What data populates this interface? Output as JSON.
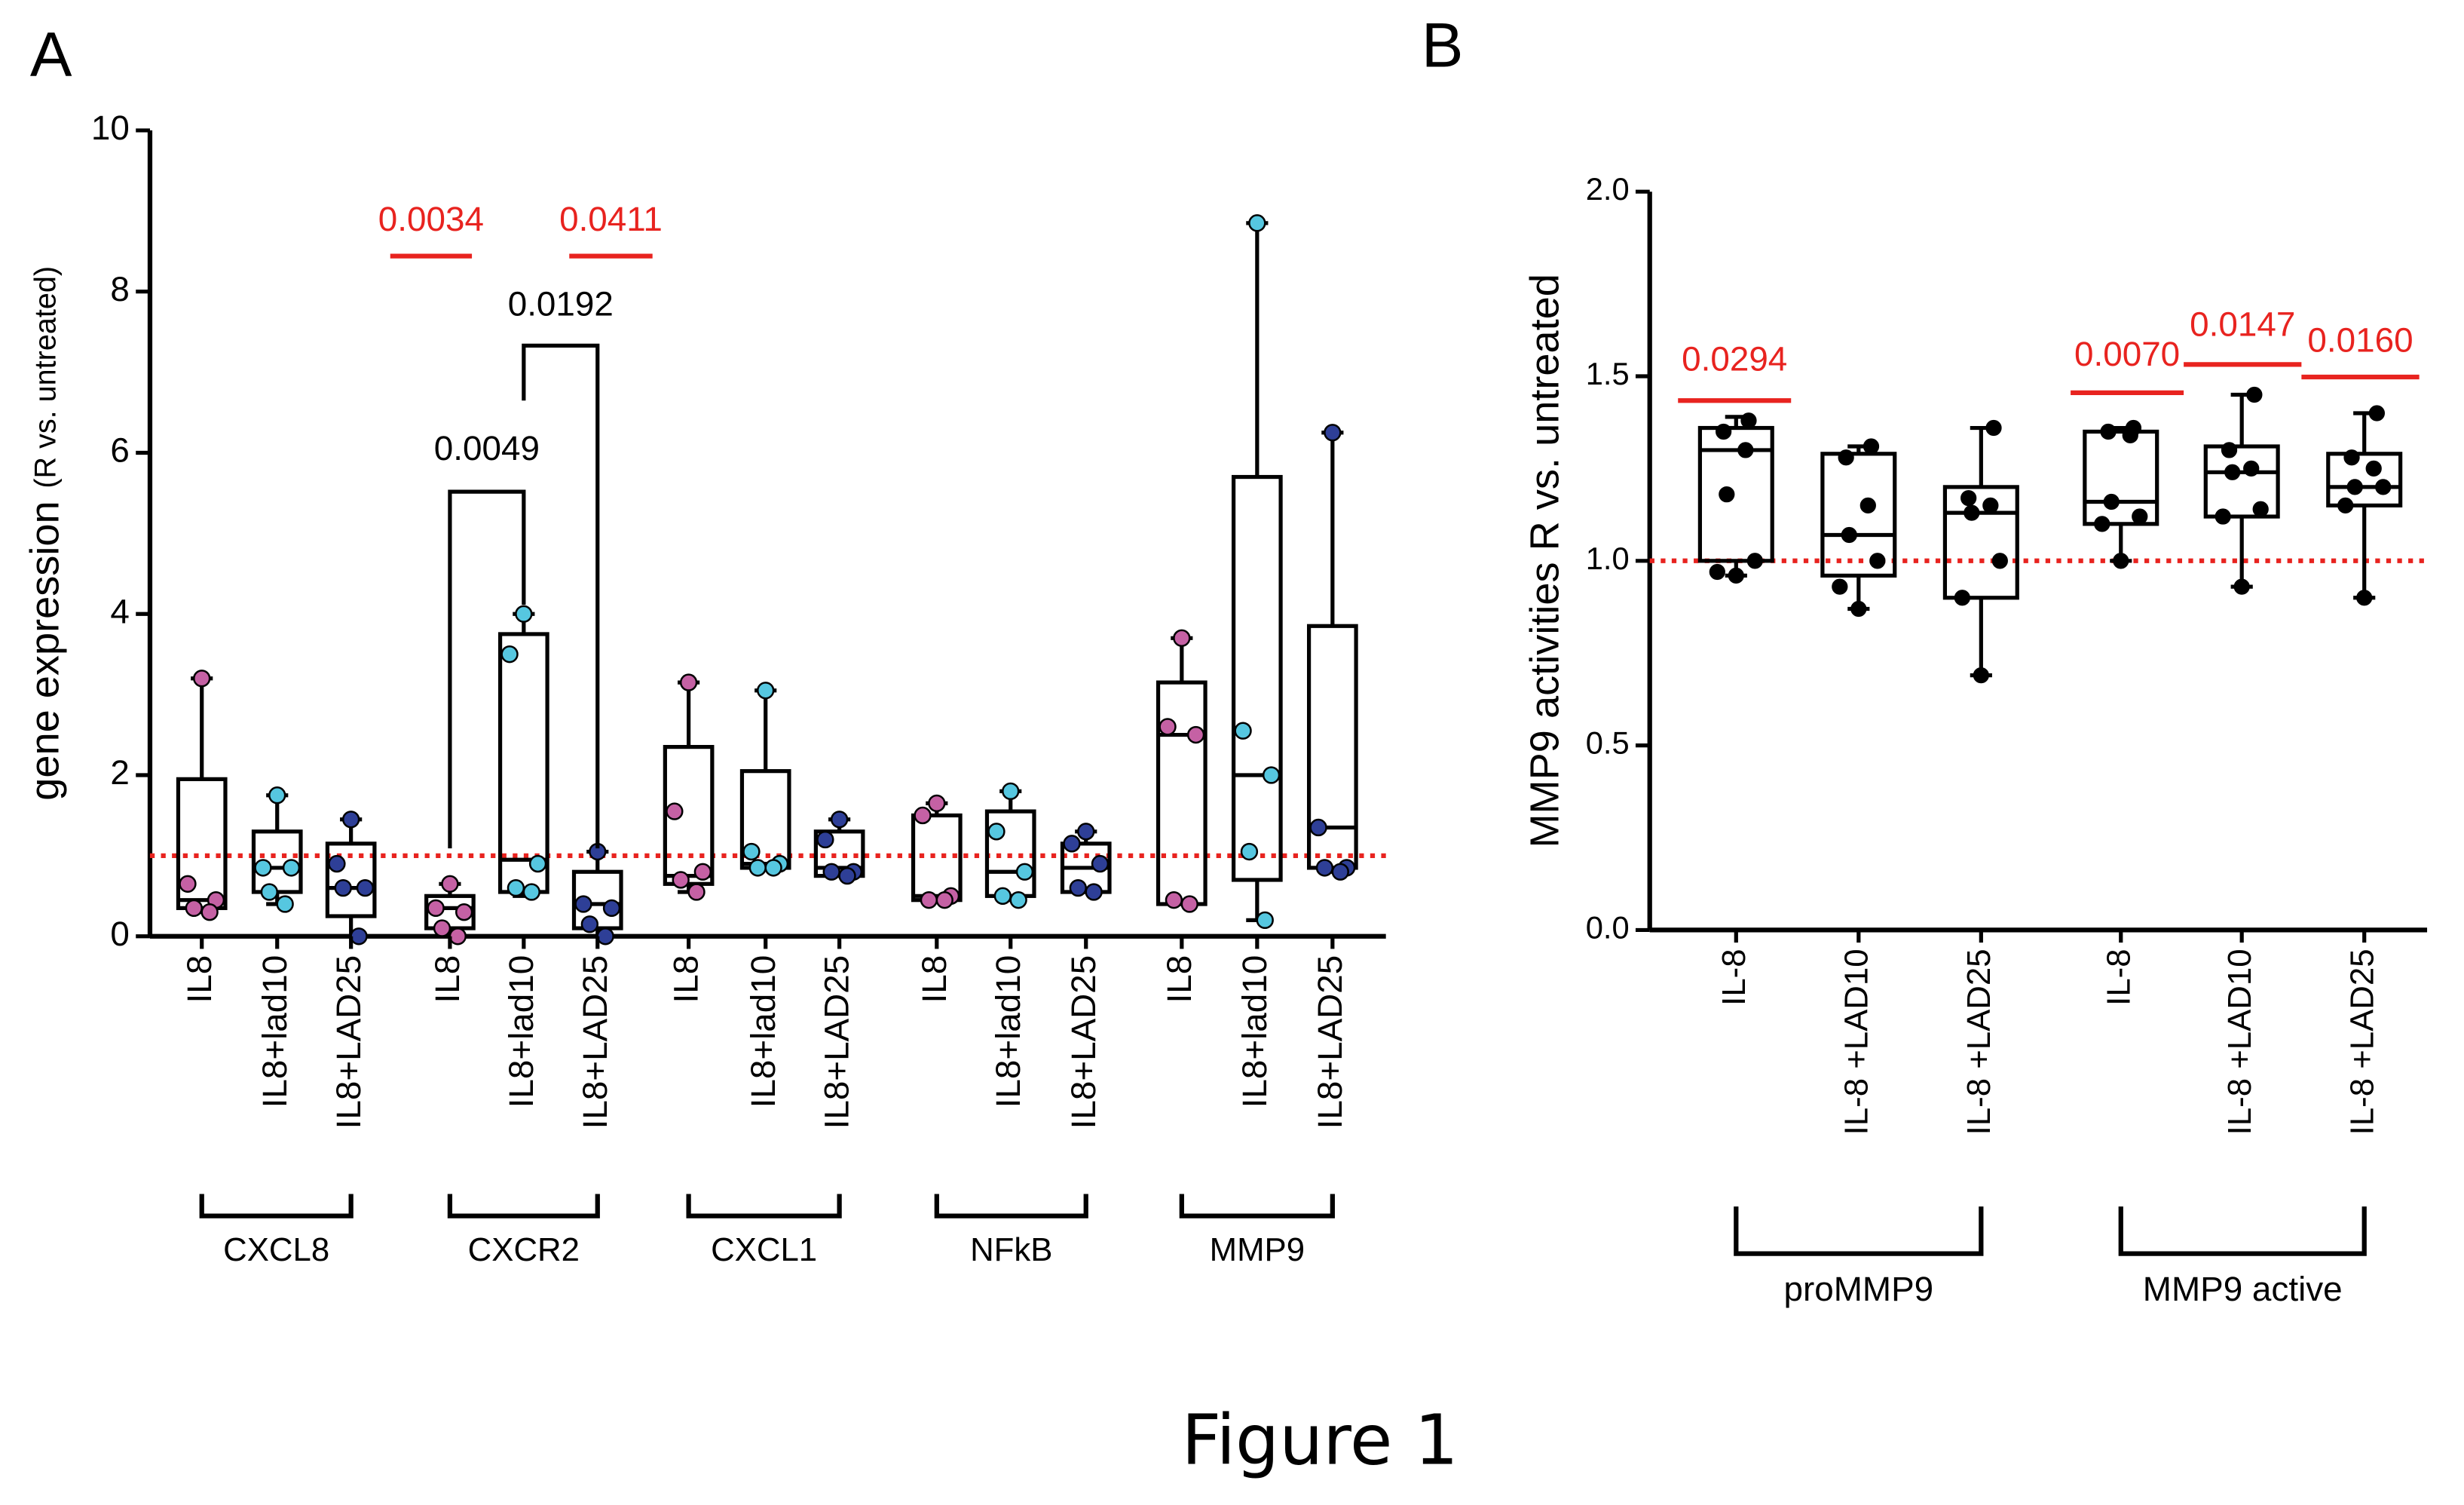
{
  "caption": "Figure 1",
  "chart_data": [
    {
      "type": "box",
      "title": "A",
      "ylabel": "gene expression",
      "ylabel_sub": "(R vs. untreated)",
      "categories": [
        "IL8",
        "IL8+lad10",
        "IL8+LAD25",
        "IL8",
        "IL8+lad10",
        "IL8+LAD25",
        "IL8",
        "IL8+lad10",
        "IL8+LAD25",
        "IL8",
        "IL8+lad10",
        "IL8+LAD25",
        "IL8",
        "IL8+lad10",
        "IL8+LAD25"
      ],
      "groups": [
        {
          "label": "CXCL8"
        },
        {
          "label": "CXCR2"
        },
        {
          "label": "CXCL1"
        },
        {
          "label": "NFkB"
        },
        {
          "label": "MMP9"
        }
      ],
      "point_colors": [
        "#c561a4",
        "#56c7e0",
        "#2e3f97"
      ],
      "boxes": [
        {
          "min": 0.3,
          "q1": 0.35,
          "median": 0.45,
          "q3": 1.95,
          "max": 3.2,
          "points": [
            3.2,
            0.65,
            0.45,
            0.35,
            0.3
          ]
        },
        {
          "min": 0.4,
          "q1": 0.55,
          "median": 0.85,
          "q3": 1.3,
          "max": 1.75,
          "points": [
            1.75,
            0.85,
            0.85,
            0.55,
            0.4
          ]
        },
        {
          "min": 0,
          "q1": 0.25,
          "median": 0.6,
          "q3": 1.15,
          "max": 1.45,
          "points": [
            1.45,
            0.9,
            0.6,
            0.6,
            0
          ]
        },
        {
          "min": 0,
          "q1": 0.1,
          "median": 0.35,
          "q3": 0.5,
          "max": 0.65,
          "points": [
            0.65,
            0.35,
            0.3,
            0.1,
            0
          ]
        },
        {
          "min": 0.5,
          "q1": 0.55,
          "median": 0.95,
          "q3": 3.75,
          "max": 4.0,
          "points": [
            4.0,
            3.5,
            0.9,
            0.6,
            0.55
          ]
        },
        {
          "min": 0,
          "q1": 0.1,
          "median": 0.4,
          "q3": 0.8,
          "max": 1.05,
          "points": [
            1.05,
            0.4,
            0.35,
            0.15,
            0
          ]
        },
        {
          "min": 0.55,
          "q1": 0.65,
          "median": 0.75,
          "q3": 2.35,
          "max": 3.15,
          "points": [
            3.15,
            1.55,
            0.8,
            0.7,
            0.55
          ]
        },
        {
          "min": 0.85,
          "q1": 0.85,
          "median": 0.9,
          "q3": 2.05,
          "max": 3.05,
          "points": [
            3.05,
            1.05,
            0.9,
            0.85,
            0.85
          ]
        },
        {
          "min": 0.75,
          "q1": 0.75,
          "median": 0.85,
          "q3": 1.3,
          "max": 1.45,
          "points": [
            1.45,
            1.2,
            0.8,
            0.8,
            0.75
          ]
        },
        {
          "min": 0.45,
          "q1": 0.45,
          "median": 0.5,
          "q3": 1.5,
          "max": 1.65,
          "points": [
            1.65,
            1.5,
            0.5,
            0.45,
            0.45
          ]
        },
        {
          "min": 0.45,
          "q1": 0.5,
          "median": 0.8,
          "q3": 1.55,
          "max": 1.8,
          "points": [
            1.8,
            1.3,
            0.8,
            0.5,
            0.45
          ]
        },
        {
          "min": 0.55,
          "q1": 0.55,
          "median": 0.85,
          "q3": 1.15,
          "max": 1.3,
          "points": [
            1.3,
            1.15,
            0.9,
            0.6,
            0.55
          ]
        },
        {
          "min": 0.4,
          "q1": 0.4,
          "median": 2.5,
          "q3": 3.15,
          "max": 3.7,
          "points": [
            3.7,
            2.6,
            2.5,
            0.45,
            0.4
          ]
        },
        {
          "min": 0.2,
          "q1": 0.7,
          "median": 2.0,
          "q3": 5.7,
          "max": 8.85,
          "points": [
            8.85,
            2.55,
            2.0,
            1.05,
            0.2
          ]
        },
        {
          "min": 0.8,
          "q1": 0.85,
          "median": 1.35,
          "q3": 3.85,
          "max": 6.25,
          "points": [
            6.25,
            1.35,
            0.85,
            0.85,
            0.8
          ]
        }
      ],
      "reference_line": 1,
      "reference_color": "#e8231f",
      "ylim": [
        0,
        10
      ],
      "yticks": [
        0,
        2,
        4,
        6,
        8,
        10
      ],
      "annotations": [
        {
          "label": "0.0034",
          "color": "#e8231f"
        },
        {
          "label": "0.0411",
          "color": "#e8231f"
        },
        {
          "label": "0.0049",
          "color": "#000000"
        },
        {
          "label": "0.0192",
          "color": "#000000"
        }
      ]
    },
    {
      "type": "box",
      "title": "B",
      "ylabel": "MMP9 activities R vs. untreated",
      "categories": [
        "IL-8",
        "IL-8 +LAD10",
        "IL-8 +LAD25",
        "IL-8",
        "IL-8 +LAD10",
        "IL-8 +LAD25"
      ],
      "groups": [
        {
          "label": "proMMP9"
        },
        {
          "label": "MMP9 active"
        }
      ],
      "point_colors": [
        "#000000"
      ],
      "boxes": [
        {
          "min": 0.96,
          "q1": 1.0,
          "median": 1.3,
          "q3": 1.36,
          "max": 1.39,
          "points": [
            1.38,
            1.35,
            1.3,
            1.18,
            1.0,
            0.97,
            0.96
          ]
        },
        {
          "min": 0.87,
          "q1": 0.96,
          "median": 1.07,
          "q3": 1.29,
          "max": 1.31,
          "points": [
            1.31,
            1.28,
            1.15,
            1.07,
            1.0,
            0.93,
            0.87
          ]
        },
        {
          "min": 0.69,
          "q1": 0.9,
          "median": 1.13,
          "q3": 1.2,
          "max": 1.36,
          "points": [
            1.36,
            1.17,
            1.15,
            1.13,
            1.0,
            0.9,
            0.69
          ]
        },
        {
          "min": 1.0,
          "q1": 1.1,
          "median": 1.16,
          "q3": 1.35,
          "max": 1.36,
          "points": [
            1.36,
            1.35,
            1.34,
            1.16,
            1.12,
            1.1,
            1.0
          ]
        },
        {
          "min": 0.93,
          "q1": 1.12,
          "median": 1.24,
          "q3": 1.31,
          "max": 1.45,
          "points": [
            1.45,
            1.3,
            1.25,
            1.24,
            1.14,
            1.12,
            0.93
          ]
        },
        {
          "min": 0.9,
          "q1": 1.15,
          "median": 1.2,
          "q3": 1.29,
          "max": 1.4,
          "points": [
            1.4,
            1.28,
            1.25,
            1.2,
            1.2,
            1.15,
            0.9
          ]
        }
      ],
      "reference_line": 1.0,
      "reference_color": "#e8231f",
      "ylim": [
        0,
        2.0
      ],
      "yticks": [
        {
          "value": 0,
          "label": "0.0"
        },
        {
          "value": 0.5,
          "label": "0.5"
        },
        {
          "value": 1.0,
          "label": "1.0"
        },
        {
          "value": 1.5,
          "label": "1.5"
        },
        {
          "value": 2.0,
          "label": "2.0"
        }
      ],
      "annotations": [
        {
          "label": "0.0294",
          "color": "#e8231f"
        },
        {
          "label": "0.0070",
          "color": "#e8231f"
        },
        {
          "label": "0.0147",
          "color": "#e8231f"
        },
        {
          "label": "0.0160",
          "color": "#e8231f"
        }
      ]
    }
  ]
}
